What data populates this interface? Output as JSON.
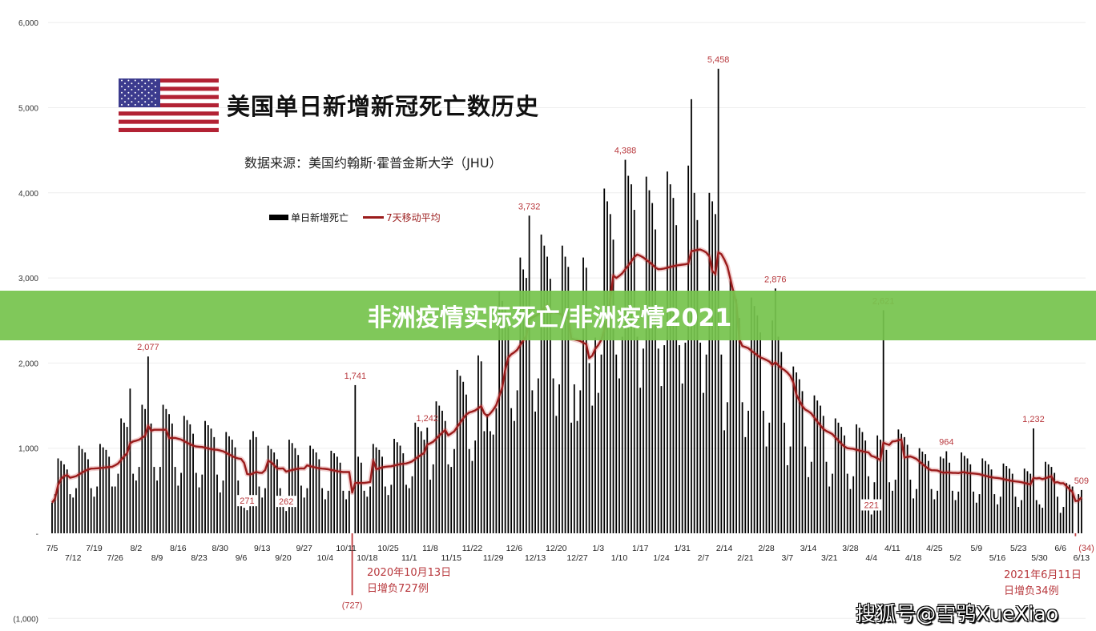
{
  "header": {
    "title": "美国单日新增新冠死亡数历史",
    "source": "数据来源：美国约翰斯·霍普金斯大学（JHU）",
    "flag_icon": "us-flag-icon"
  },
  "banner": {
    "text": "非洲疫情实际死亡/非洲疫情2021",
    "color": "#76c44e"
  },
  "watermark": "搜狐号@雪鸮XueXiao",
  "callouts": [
    {
      "line1": "2020年10月13日",
      "line2": "日增负727例"
    },
    {
      "line1": "2021年6月11日",
      "line2": "日增负34例"
    }
  ],
  "colors": {
    "bars": "#000000",
    "moving_average": "#9b1c1c",
    "annotations": "#b8383d",
    "grid": "#eeeeee"
  },
  "chart_data": {
    "type": "bar",
    "title": "美国单日新增新冠死亡数历史",
    "legend": {
      "placement": "top",
      "entries": [
        "单日新增死亡",
        "7天移动平均"
      ]
    },
    "grid": true,
    "ylim": [
      -1000,
      6000
    ],
    "y_ticks": [
      {
        "value": 6000,
        "label": "6,000"
      },
      {
        "value": 5000,
        "label": "5,000"
      },
      {
        "value": 4000,
        "label": "4,000"
      },
      {
        "value": 3000,
        "label": "3,000"
      },
      {
        "value": 2000,
        "label": "2,000"
      },
      {
        "value": 1000,
        "label": "1,000"
      },
      {
        "value": 0,
        "label": "-"
      },
      {
        "value": -1000,
        "label": "(1,000)"
      }
    ],
    "x_tick_labels": [
      "7/5",
      "7/12",
      "7/19",
      "7/26",
      "8/2",
      "8/9",
      "8/16",
      "8/23",
      "8/30",
      "9/6",
      "9/13",
      "9/20",
      "9/27",
      "10/4",
      "10/11",
      "10/18",
      "10/25",
      "11/1",
      "11/8",
      "11/15",
      "11/22",
      "11/29",
      "12/6",
      "12/13",
      "12/20",
      "12/27",
      "1/3",
      "1/10",
      "1/17",
      "1/24",
      "1/31",
      "2/7",
      "2/14",
      "2/21",
      "2/28",
      "3/7",
      "3/14",
      "3/21",
      "3/28",
      "4/4",
      "4/11",
      "4/18",
      "4/25",
      "5/2",
      "5/9",
      "5/16",
      "5/23",
      "5/30",
      "6/6",
      "6/13"
    ],
    "series": [
      {
        "name": "单日新增死亡",
        "kind": "bar",
        "values": [
          360,
          460,
          880,
          850,
          810,
          750,
          460,
          420,
          530,
          1030,
          990,
          950,
          870,
          530,
          430,
          550,
          1050,
          1010,
          980,
          900,
          550,
          550,
          700,
          1350,
          1300,
          1250,
          1700,
          700,
          620,
          780,
          1510,
          1460,
          2077,
          1290,
          780,
          620,
          780,
          1510,
          1460,
          1400,
          1290,
          780,
          560,
          710,
          1380,
          1330,
          1280,
          1170,
          710,
          540,
          690,
          1320,
          1270,
          1230,
          1130,
          690,
          480,
          620,
          1190,
          1140,
          1100,
          1010,
          620,
          430,
          300,
          271,
          1100,
          1200,
          1130,
          550,
          420,
          530,
          1030,
          990,
          950,
          870,
          530,
          440,
          262,
          1100,
          1060,
          1000,
          920,
          560,
          420,
          530,
          1030,
          990,
          950,
          870,
          530,
          400,
          500,
          970,
          940,
          900,
          830,
          500,
          400,
          500,
          -727,
          1741,
          900,
          830,
          500,
          430,
          550,
          1050,
          1010,
          980,
          900,
          550,
          450,
          570,
          1110,
          1070,
          1030,
          940,
          570,
          530,
          670,
          1300,
          1250,
          1200,
          1100,
          1242,
          630,
          810,
          1550,
          1500,
          1440,
          1320,
          810,
          780,
          990,
          1920,
          1850,
          1780,
          1630,
          990,
          850,
          1090,
          2090,
          2020,
          1200,
          1400,
          1200,
          1160,
          1470,
          2840,
          2730,
          2630,
          2420,
          1470,
          1320,
          1680,
          3240,
          3100,
          3000,
          3732,
          1680,
          1430,
          1820,
          3510,
          3380,
          3250,
          2990,
          1820,
          1380,
          1750,
          3380,
          3250,
          3130,
          1300,
          1750,
          1320,
          1680,
          3240,
          3120,
          2000,
          1500,
          2300,
          1650,
          2100,
          4050,
          3900,
          3750,
          3450,
          2100,
          1820,
          2310,
          4388,
          4200,
          4100,
          3800,
          2310,
          1710,
          2170,
          4190,
          4030,
          3880,
          3570,
          2170,
          1730,
          2210,
          4250,
          4100,
          3940,
          3620,
          2210,
          1760,
          2240,
          4320,
          5100,
          4000,
          3680,
          2240,
          1650,
          2100,
          4000,
          3900,
          3750,
          5458,
          2100,
          1210,
          1540,
          2970,
          2860,
          2750,
          2530,
          1540,
          1130,
          1440,
          2770,
          2670,
          2560,
          2360,
          1440,
          1020,
          1300,
          2500,
          2876,
          2310,
          2130,
          1300,
          800,
          1020,
          1960,
          1890,
          1810,
          1670,
          1020,
          660,
          840,
          1620,
          1560,
          1500,
          1380,
          840,
          550,
          700,
          1350,
          1300,
          1250,
          1150,
          700,
          520,
          670,
          1280,
          1240,
          1190,
          1090,
          670,
          221,
          600,
          1150,
          1100,
          2621,
          980,
          600,
          500,
          630,
          1220,
          1170,
          1130,
          1040,
          630,
          410,
          520,
          1000,
          960,
          930,
          850,
          520,
          400,
          500,
          900,
          880,
          964,
          830,
          500,
          390,
          490,
          950,
          910,
          880,
          810,
          490,
          360,
          460,
          880,
          850,
          810,
          750,
          460,
          340,
          430,
          820,
          790,
          760,
          700,
          430,
          310,
          390,
          760,
          730,
          700,
          1232,
          390,
          340,
          300,
          840,
          810,
          780,
          710,
          430,
          240,
          310,
          590,
          570,
          550,
          -34,
          460,
          509
        ]
      },
      {
        "name": "7天移动平均",
        "kind": "line",
        "window_days": 7
      }
    ],
    "annotations": [
      {
        "label": "2,077",
        "value": 2077
      },
      {
        "label": "271",
        "value": 271
      },
      {
        "label": "262",
        "value": 262
      },
      {
        "label": "1,741",
        "value": 1741
      },
      {
        "label": "(727)",
        "value": -727
      },
      {
        "label": "1,242",
        "value": 1242
      },
      {
        "label": "3,732",
        "value": 3732
      },
      {
        "label": "4,388",
        "value": 4388
      },
      {
        "label": "5,458",
        "value": 5458
      },
      {
        "label": "2,876",
        "value": 2876
      },
      {
        "label": "2,621",
        "value": 2621
      },
      {
        "label": "221",
        "value": 221
      },
      {
        "label": "964",
        "value": 964
      },
      {
        "label": "1,232",
        "value": 1232
      },
      {
        "label": "(34)",
        "value": -34
      },
      {
        "label": "509",
        "value": 509
      }
    ]
  }
}
